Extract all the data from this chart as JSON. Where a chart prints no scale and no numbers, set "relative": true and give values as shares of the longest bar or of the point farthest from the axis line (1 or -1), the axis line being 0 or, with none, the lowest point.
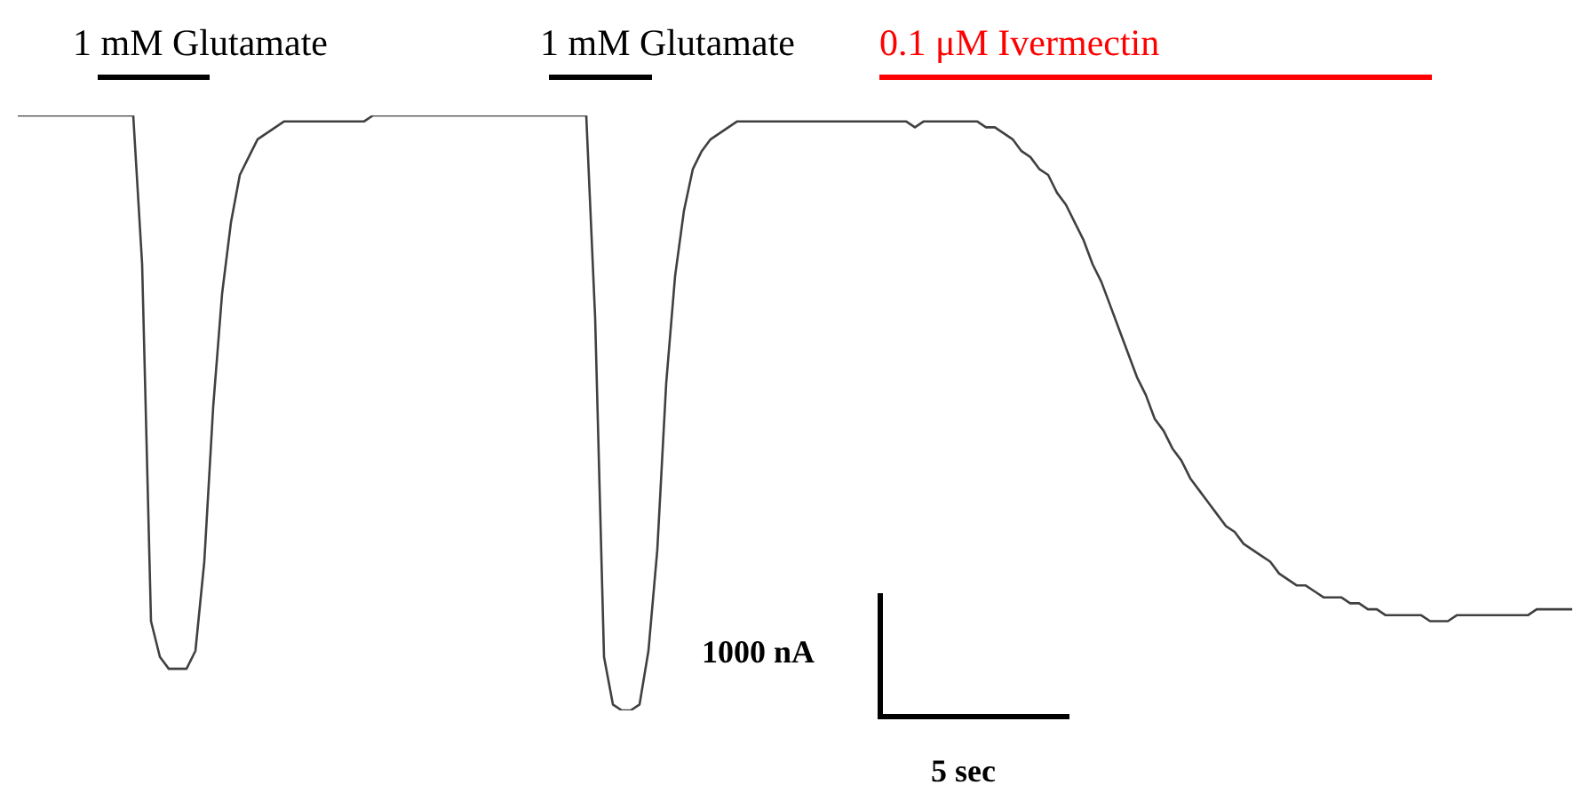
{
  "chart_data": {
    "type": "line",
    "relative": true,
    "legend": false,
    "categories": [
      null,
      null,
      null,
      null,
      null,
      null,
      null,
      null,
      null,
      null,
      null,
      null,
      null,
      null,
      null,
      null,
      null,
      null,
      null,
      null,
      null,
      null,
      null,
      null,
      null,
      null,
      null,
      null,
      null,
      null,
      null,
      null,
      null,
      null,
      null,
      null,
      null,
      null,
      null,
      null,
      null,
      null,
      null,
      null,
      null,
      null,
      null,
      null,
      null,
      null,
      null,
      null,
      null,
      null,
      null,
      null,
      null,
      null,
      null,
      null,
      null,
      null,
      null,
      null,
      null,
      null,
      null,
      null,
      null,
      null,
      null,
      null,
      null,
      null,
      null,
      null,
      null,
      null,
      null,
      null,
      null,
      null,
      null,
      null,
      null,
      null,
      null,
      null,
      null,
      null,
      null,
      null,
      null,
      null,
      null,
      null,
      null,
      null,
      null,
      null,
      null,
      null,
      null,
      null,
      null,
      null,
      null,
      null,
      null,
      null,
      null,
      null,
      null,
      null,
      null,
      null,
      null,
      null,
      null,
      null,
      null,
      null,
      null,
      null,
      null,
      null,
      null,
      null,
      null,
      null,
      null,
      null,
      null,
      null,
      null,
      null,
      null,
      null,
      null,
      null,
      null,
      null,
      null,
      null,
      null,
      null,
      null,
      null,
      null,
      null,
      null,
      null,
      null,
      null,
      null,
      null,
      null,
      null,
      null,
      null,
      null,
      null,
      null,
      null,
      null,
      null,
      null,
      null,
      null,
      null,
      null,
      null,
      null,
      null,
      null,
      null
    ],
    "series": [
      {
        "color": "#404040",
        "values": [
          1,
          1,
          1,
          1,
          1,
          1,
          1,
          1,
          1,
          1,
          1,
          1,
          1,
          1,
          0.75,
          0.15,
          0.09,
          0.07,
          0.07,
          0.07,
          0.1,
          0.25,
          0.51,
          0.7,
          0.82,
          0.9,
          0.93,
          0.96,
          0.97,
          0.98,
          0.99,
          0.99,
          0.99,
          0.99,
          0.99,
          0.99,
          0.99,
          0.99,
          0.99,
          0.99,
          1,
          1,
          1,
          1,
          1,
          1,
          1,
          1,
          1,
          1,
          1,
          1,
          1,
          1,
          1,
          1,
          1,
          1,
          1,
          1,
          1,
          1,
          1,
          1,
          1,
          0.66,
          0.09,
          0.01,
          0,
          0,
          0.01,
          0.1,
          0.27,
          0.55,
          0.73,
          0.84,
          0.91,
          0.94,
          0.96,
          0.97,
          0.98,
          0.99,
          0.99,
          0.99,
          0.99,
          0.99,
          0.99,
          0.99,
          0.99,
          0.99,
          0.99,
          0.99,
          0.99,
          0.99,
          0.99,
          0.99,
          0.99,
          0.99,
          0.99,
          0.99,
          0.99,
          0.98,
          0.99,
          0.99,
          0.99,
          0.99,
          0.99,
          0.99,
          0.99,
          0.98,
          0.98,
          0.97,
          0.96,
          0.94,
          0.93,
          0.91,
          0.9,
          0.87,
          0.85,
          0.82,
          0.79,
          0.75,
          0.72,
          0.68,
          0.64,
          0.6,
          0.56,
          0.53,
          0.49,
          0.47,
          0.44,
          0.42,
          0.39,
          0.37,
          0.35,
          0.33,
          0.31,
          0.3,
          0.28,
          0.27,
          0.26,
          0.25,
          0.23,
          0.22,
          0.21,
          0.21,
          0.2,
          0.19,
          0.19,
          0.19,
          0.18,
          0.18,
          0.17,
          0.17,
          0.16,
          0.16,
          0.16,
          0.16,
          0.16,
          0.15,
          0.15,
          0.15,
          0.16,
          0.16,
          0.16,
          0.16,
          0.16,
          0.16,
          0.16,
          0.16,
          0.16,
          0.17,
          0.17,
          0.17,
          0.17,
          0.17
        ]
      }
    ],
    "annotations": [
      "1 mM Glutamate",
      "1 mM Glutamate",
      "0.1 μM Ivermectin",
      "1000 nA",
      "5 sec"
    ]
  }
}
